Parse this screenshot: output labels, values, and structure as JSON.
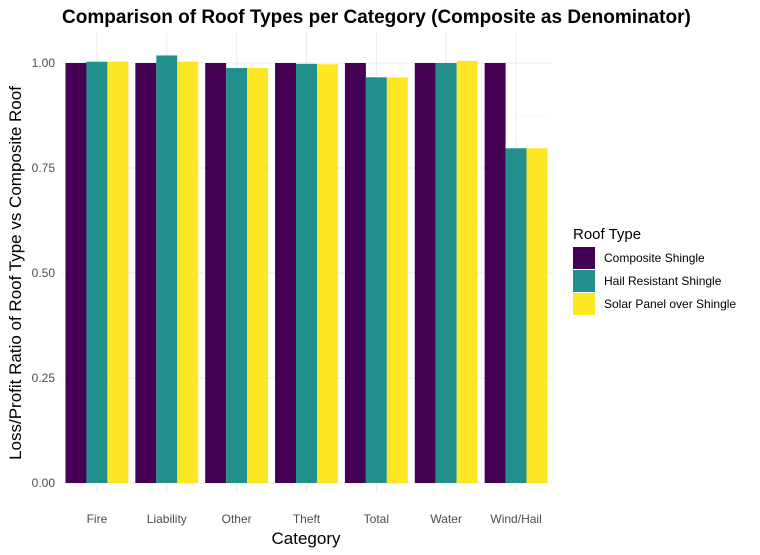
{
  "chart_data": {
    "type": "bar",
    "title": "Comparison of Roof Types per Category (Composite as Denominator)",
    "xlabel": "Category",
    "ylabel": "Loss/Profit Ratio of Roof Type vs Composite Roof",
    "categories": [
      "Fire",
      "Liability",
      "Other",
      "Theft",
      "Total",
      "Water",
      "Wind/Hail"
    ],
    "ylim": [
      0,
      1.05
    ],
    "yticks": [
      "0.00",
      "0.25",
      "0.50",
      "0.75",
      "1.00"
    ],
    "grid": true,
    "legend": {
      "title": "Roof Type",
      "position": "right"
    },
    "series": [
      {
        "name": "Composite Shingle",
        "color": "#440154",
        "values": [
          1.0,
          1.0,
          1.0,
          1.0,
          1.0,
          1.0,
          1.0
        ]
      },
      {
        "name": "Hail Resistant Shingle",
        "color": "#21908c",
        "values": [
          1.003,
          1.018,
          0.988,
          0.998,
          0.966,
          1.0,
          0.797
        ]
      },
      {
        "name": "Solar Panel over Shingle",
        "color": "#fde725",
        "values": [
          1.003,
          1.003,
          0.988,
          0.997,
          0.966,
          1.005,
          0.797
        ]
      }
    ]
  }
}
